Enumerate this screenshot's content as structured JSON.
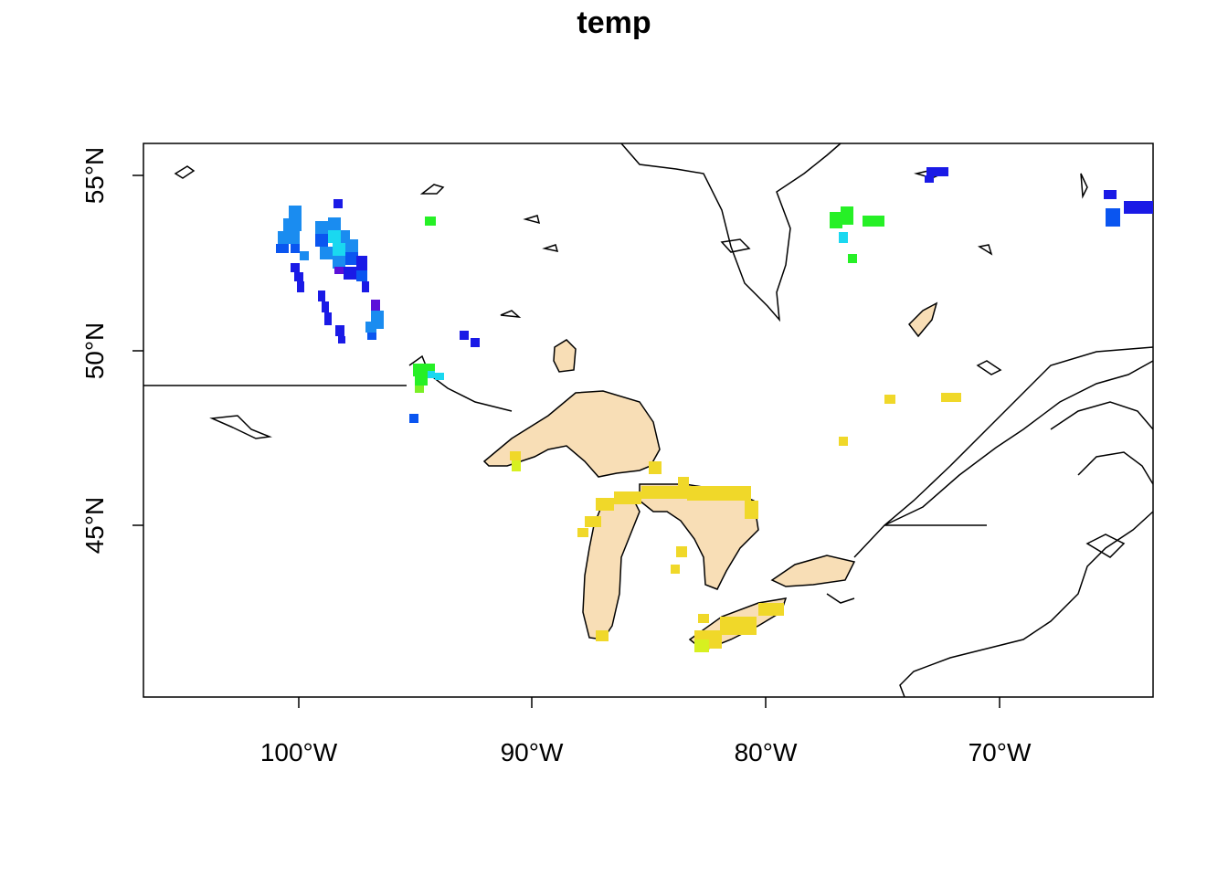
{
  "title": "temp",
  "axes": {
    "x_ticks": [
      "100°W",
      "90°W",
      "80°W",
      "70°W"
    ],
    "y_ticks": [
      "45°N",
      "50°N",
      "55°N"
    ]
  },
  "colors": {
    "lake_fill": "#f8deb6",
    "coast": "#000000",
    "palette": [
      "#5b10d9",
      "#1a1ae6",
      "#0a55f0",
      "#1a8cf0",
      "#1ad8f0",
      "#26f026",
      "#7af026",
      "#d7f020",
      "#f0d829"
    ]
  },
  "layers": {
    "lakes": "Great Lakes fill",
    "raster": "temp grid cells",
    "borders": "coastline and international border"
  }
}
